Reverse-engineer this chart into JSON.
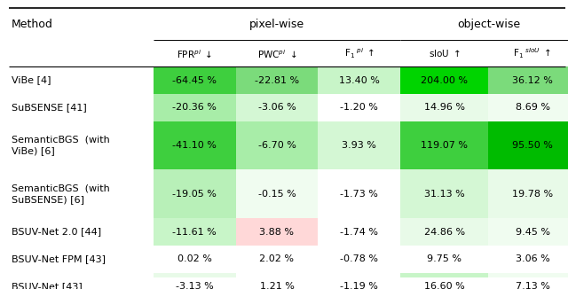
{
  "methods": [
    [
      "ViBe [",
      "4",
      "]"
    ],
    [
      "SuBSENSE [",
      "41",
      "]"
    ],
    [
      "SemanticBGS  (with\nViBe) [",
      "6",
      "]"
    ],
    [
      "SemanticBGS  (with\nSuBSENSE) [",
      "6",
      "]"
    ],
    [
      "BSUV-Net 2.0 [",
      "44",
      "]"
    ],
    [
      "BSUV-Net FPM [",
      "43",
      "]"
    ],
    [
      "BSUV-Net [",
      "43",
      "]"
    ]
  ],
  "data": [
    [
      "-64.45 %",
      "-22.81 %",
      "13.40 %",
      "204.00 %",
      "36.12 %"
    ],
    [
      "-20.36 %",
      "-3.06 %",
      "-1.20 %",
      "14.96 %",
      "8.69 %"
    ],
    [
      "-41.10 %",
      "-6.70 %",
      "3.93 %",
      "119.07 %",
      "95.50 %"
    ],
    [
      "-19.05 %",
      "-0.15 %",
      "-1.73 %",
      "31.13 %",
      "19.78 %"
    ],
    [
      "-11.61 %",
      "3.88 %",
      "-1.74 %",
      "24.86 %",
      "9.45 %"
    ],
    [
      "0.02 %",
      "2.02 %",
      "-0.78 %",
      "9.75 %",
      "3.06 %"
    ],
    [
      "-3.13 %",
      "1.21 %",
      "-1.19 %",
      "16.60 %",
      "7.13 %"
    ]
  ],
  "cell_colors": [
    [
      "#3ecf3e",
      "#7bdb7b",
      "#c8f5c8",
      "#00d400",
      "#7bdb7b"
    ],
    [
      "#a8eda8",
      "#d4f7d4",
      "#ffffff",
      "#e8fae8",
      "#f0fcf0"
    ],
    [
      "#3ecf3e",
      "#a8eda8",
      "#d4f7d4",
      "#3ecf3e",
      "#00bb00"
    ],
    [
      "#b8f0b8",
      "#f0fcf0",
      "#ffffff",
      "#d4f7d4",
      "#e8fae8"
    ],
    [
      "#c8f5c8",
      "#ffd8d8",
      "#ffffff",
      "#e8fae8",
      "#f0fcf0"
    ],
    [
      "#ffffff",
      "#ffffff",
      "#ffffff",
      "#ffffff",
      "#ffffff"
    ],
    [
      "#e8fae8",
      "#ffffff",
      "#ffffff",
      "#c8f5c8",
      "#f0fcf0"
    ]
  ],
  "ref_color": "#33bb33",
  "bg_color": "#ffffff"
}
